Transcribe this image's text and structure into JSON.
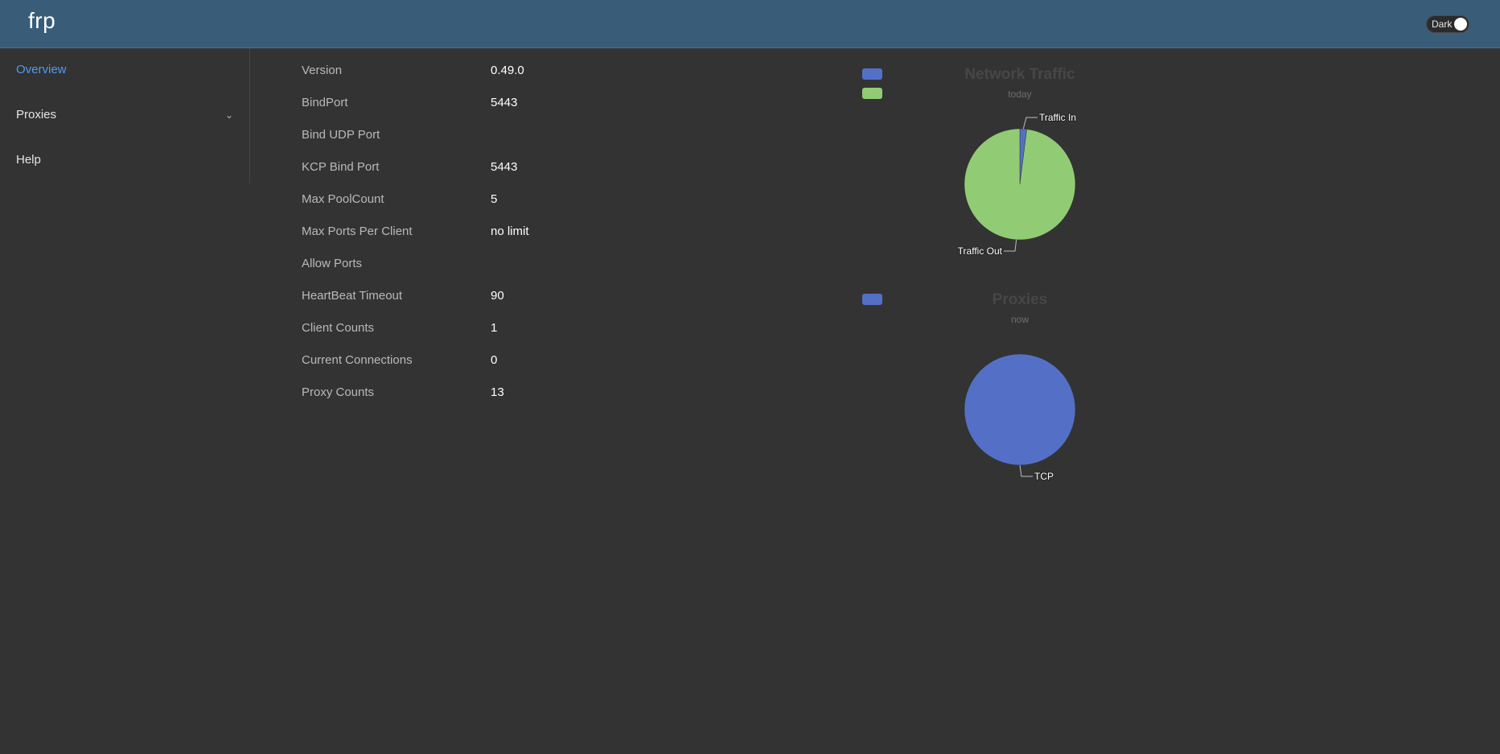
{
  "header": {
    "brand": "frp",
    "theme_label": "Dark"
  },
  "sidebar": {
    "items": [
      {
        "label": "Overview",
        "active": true
      },
      {
        "label": "Proxies",
        "expandable": true
      },
      {
        "label": "Help"
      }
    ]
  },
  "server_info": {
    "rows": [
      {
        "label": "Version",
        "value": "0.49.0"
      },
      {
        "label": "BindPort",
        "value": "5443"
      },
      {
        "label": "Bind UDP Port",
        "value": ""
      },
      {
        "label": "KCP Bind Port",
        "value": "5443"
      },
      {
        "label": "Max PoolCount",
        "value": "5"
      },
      {
        "label": "Max Ports Per Client",
        "value": "no limit"
      },
      {
        "label": "Allow Ports",
        "value": ""
      },
      {
        "label": "HeartBeat Timeout",
        "value": "90"
      },
      {
        "label": "Client Counts",
        "value": "1"
      },
      {
        "label": "Current Connections",
        "value": "0"
      },
      {
        "label": "Proxy Counts",
        "value": "13"
      }
    ]
  },
  "chart_data": [
    {
      "type": "pie",
      "title": "Network Traffic",
      "subtitle": "today",
      "legend_position": "top-left",
      "categories": [
        "Traffic In",
        "Traffic Out"
      ],
      "values": [
        2,
        98
      ],
      "colors": [
        "#5470c6",
        "#91cc75"
      ]
    },
    {
      "type": "pie",
      "title": "Proxies",
      "subtitle": "now",
      "legend_position": "top-left",
      "categories": [
        "TCP"
      ],
      "values": [
        13
      ],
      "colors": [
        "#5470c6"
      ]
    }
  ]
}
